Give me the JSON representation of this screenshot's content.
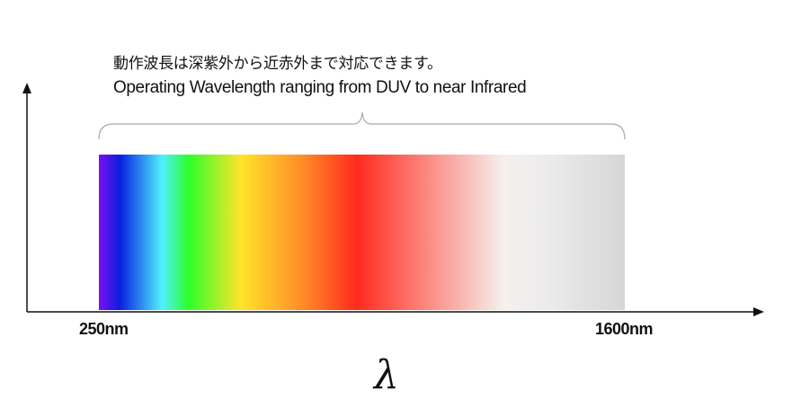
{
  "caption": {
    "japanese": "動作波長は深紫外から近赤外まで対応できます。",
    "english": "Operating Wavelength ranging from DUV to near Infrared"
  },
  "axis": {
    "x_min_label": "250nm",
    "x_max_label": "1600nm",
    "x_symbol": "λ"
  },
  "spectrum_colors": [
    "#7a0ff0",
    "#0a1fe0",
    "#4ff0ff",
    "#2cff2c",
    "#ffe52a",
    "#ff8a28",
    "#ff2a1e",
    "#f6f0ee",
    "#ececec",
    "#d6d6d6"
  ]
}
